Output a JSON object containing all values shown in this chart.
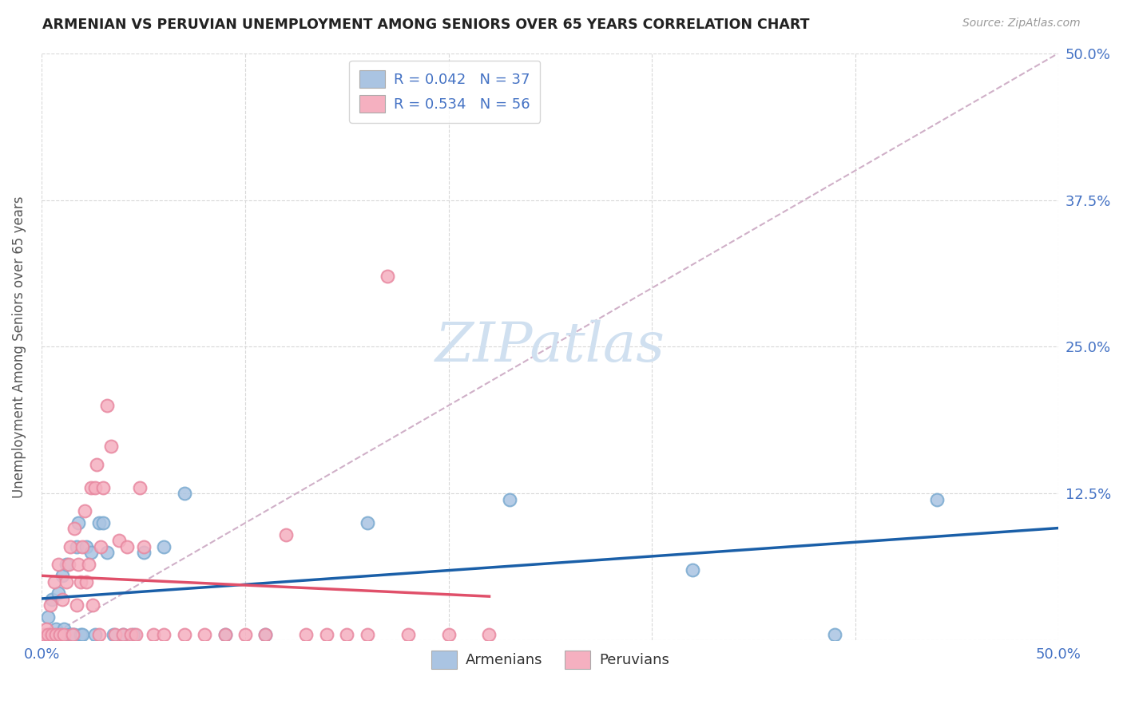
{
  "title": "ARMENIAN VS PERUVIAN UNEMPLOYMENT AMONG SENIORS OVER 65 YEARS CORRELATION CHART",
  "source": "Source: ZipAtlas.com",
  "ylabel": "Unemployment Among Seniors over 65 years",
  "xlim": [
    0.0,
    0.5
  ],
  "ylim": [
    0.0,
    0.5
  ],
  "armenian_R": 0.042,
  "armenian_N": 37,
  "peruvian_R": 0.534,
  "peruvian_N": 56,
  "armenian_color": "#aac4e2",
  "armenian_edge_color": "#7aaad0",
  "armenian_line_color": "#1a5fa8",
  "peruvian_color": "#f5b0c0",
  "peruvian_edge_color": "#e888a0",
  "peruvian_line_color": "#e0506a",
  "diagonal_color": "#d0b0c8",
  "grid_color": "#d8d8d8",
  "background_color": "#ffffff",
  "watermark_color": "#d0e0f0",
  "tick_color": "#4472c4",
  "label_color": "#555555",
  "armenian_x": [
    0.003,
    0.004,
    0.005,
    0.006,
    0.007,
    0.008,
    0.009,
    0.01,
    0.011,
    0.012,
    0.013,
    0.014,
    0.015,
    0.016,
    0.017,
    0.018,
    0.019,
    0.02,
    0.022,
    0.024,
    0.026,
    0.028,
    0.03,
    0.032,
    0.035,
    0.04,
    0.045,
    0.05,
    0.06,
    0.07,
    0.09,
    0.11,
    0.16,
    0.23,
    0.32,
    0.39,
    0.44
  ],
  "armenian_y": [
    0.02,
    0.005,
    0.035,
    0.005,
    0.01,
    0.04,
    0.005,
    0.055,
    0.01,
    0.065,
    0.005,
    0.005,
    0.005,
    0.005,
    0.08,
    0.1,
    0.005,
    0.005,
    0.08,
    0.075,
    0.005,
    0.1,
    0.1,
    0.075,
    0.005,
    0.005,
    0.005,
    0.075,
    0.08,
    0.125,
    0.005,
    0.005,
    0.1,
    0.12,
    0.06,
    0.005,
    0.12
  ],
  "peruvian_x": [
    0.001,
    0.002,
    0.003,
    0.004,
    0.005,
    0.006,
    0.007,
    0.008,
    0.009,
    0.01,
    0.011,
    0.012,
    0.013,
    0.014,
    0.015,
    0.016,
    0.017,
    0.018,
    0.019,
    0.02,
    0.021,
    0.022,
    0.023,
    0.024,
    0.025,
    0.026,
    0.027,
    0.028,
    0.029,
    0.03,
    0.032,
    0.034,
    0.036,
    0.038,
    0.04,
    0.042,
    0.044,
    0.046,
    0.048,
    0.05,
    0.055,
    0.06,
    0.07,
    0.08,
    0.09,
    0.1,
    0.11,
    0.12,
    0.13,
    0.14,
    0.15,
    0.16,
    0.17,
    0.18,
    0.2,
    0.22
  ],
  "peruvian_y": [
    0.005,
    0.01,
    0.005,
    0.03,
    0.005,
    0.05,
    0.005,
    0.065,
    0.005,
    0.035,
    0.005,
    0.05,
    0.065,
    0.08,
    0.005,
    0.095,
    0.03,
    0.065,
    0.05,
    0.08,
    0.11,
    0.05,
    0.065,
    0.13,
    0.03,
    0.13,
    0.15,
    0.005,
    0.08,
    0.13,
    0.2,
    0.165,
    0.005,
    0.085,
    0.005,
    0.08,
    0.005,
    0.005,
    0.13,
    0.08,
    0.005,
    0.005,
    0.005,
    0.005,
    0.005,
    0.005,
    0.005,
    0.09,
    0.005,
    0.005,
    0.005,
    0.005,
    0.31,
    0.005,
    0.005,
    0.005
  ]
}
